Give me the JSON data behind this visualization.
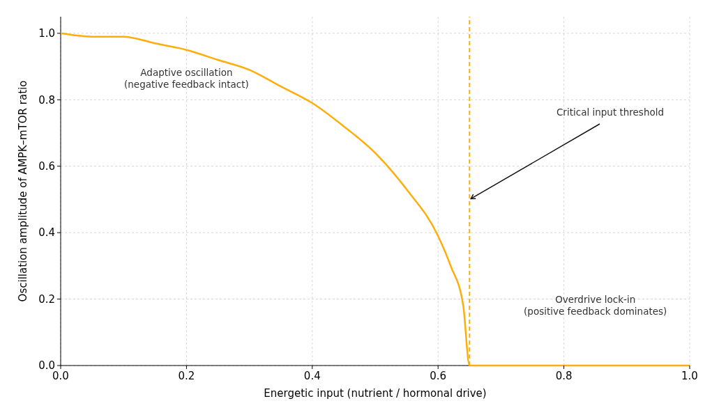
{
  "chart_data": {
    "type": "line",
    "xlabel": "Energetic input (nutrient / hormonal drive)",
    "ylabel": "Oscillation amplitude of AMPK–mTOR ratio",
    "xlim": [
      0,
      1
    ],
    "ylim": [
      0,
      1.05
    ],
    "xticks": [
      {
        "value": 0,
        "label": "0.0"
      },
      0.2,
      0.4,
      0.6,
      0.8,
      {
        "value": 1,
        "label": "1.0"
      }
    ],
    "yticks": [
      {
        "value": 0,
        "label": "0.0"
      },
      0.2,
      0.4,
      0.6,
      0.8,
      {
        "value": 1,
        "label": "1.0"
      }
    ],
    "grid": true,
    "line_style": "solid",
    "marker": "none",
    "series": [
      {
        "color": "#ffad0a",
        "x": [
          0,
          0.05,
          0.1,
          0.15,
          0.2,
          0.25,
          0.3,
          0.35,
          0.4,
          0.45,
          0.5,
          0.55,
          0.6,
          0.62,
          0.64,
          0.65,
          1.0
        ],
        "values": [
          1,
          0.99,
          0.99,
          0.97,
          0.95,
          0.92,
          0.89,
          0.84,
          0.79,
          0.72,
          0.64,
          0.53,
          0.39,
          0.3,
          0.18,
          0,
          0
        ]
      }
    ],
    "ref_lines": [
      {
        "axis": "x",
        "value": 0.65,
        "color": "#ffad0a",
        "line_style": "dashed"
      }
    ],
    "annotations": [
      "Adaptive oscillation\n(negative feedback intact)",
      {
        "text": "Critical input threshold",
        "x": 0.65,
        "y": 0.5
      },
      "Overdrive lock-in\n(positive feedback dominates)"
    ]
  }
}
